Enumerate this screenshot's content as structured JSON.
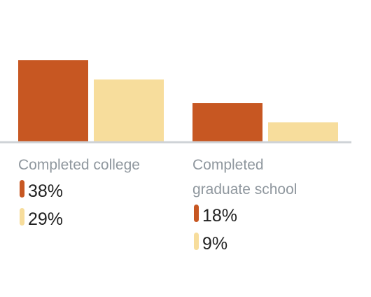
{
  "chart_data": {
    "type": "bar",
    "categories": [
      [
        "Completed college"
      ],
      [
        "Completed",
        "graduate school"
      ]
    ],
    "series": [
      {
        "values": [
          38,
          18
        ],
        "labels": [
          "38%",
          "18%"
        ],
        "color": "#c75722"
      },
      {
        "values": [
          29,
          9
        ],
        "labels": [
          "29%",
          "9%"
        ],
        "color": "#f7dd9c"
      }
    ],
    "ylim": [
      0,
      38
    ],
    "baseline_color": "#cfd3d7",
    "grid": false,
    "legend": "none"
  }
}
